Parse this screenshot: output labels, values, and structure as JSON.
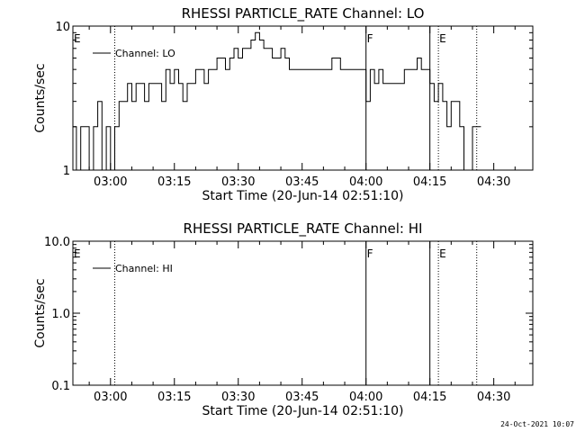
{
  "footer": {
    "date": "24-Oct-2021 10:07"
  },
  "chart_data": [
    {
      "type": "line",
      "title": "RHESSI PARTICLE_RATE Channel: LO",
      "xlabel": "Start Time (20-Jun-14 02:51:10)",
      "ylabel": "Counts/sec",
      "y_scale": "log",
      "ylim": [
        1,
        10
      ],
      "xlim_minutes_after_02:51:10": [
        0,
        108
      ],
      "x_ticks": [
        "03:00",
        "03:15",
        "03:30",
        "03:45",
        "04:00",
        "04:15",
        "04:30"
      ],
      "y_ticks": [
        "1",
        "10"
      ],
      "legend": {
        "position": "top-left",
        "entries": [
          "Channel: LO"
        ]
      },
      "annotations": [
        {
          "label": "E",
          "x": "02:51"
        },
        {
          "label": "F",
          "x": "04:00"
        },
        {
          "label": "E",
          "x": "04:17"
        }
      ],
      "series": [
        {
          "name": "Channel: LO",
          "x": [
            "02:51",
            "02:52",
            "02:53",
            "02:54",
            "02:55",
            "02:56",
            "02:57",
            "02:58",
            "02:59",
            "03:00",
            "03:01",
            "03:02",
            "03:03",
            "03:04",
            "03:05",
            "03:06",
            "03:07",
            "03:08",
            "03:09",
            "03:10",
            "03:11",
            "03:12",
            "03:13",
            "03:14",
            "03:15",
            "03:16",
            "03:17",
            "03:18",
            "03:19",
            "03:20",
            "03:21",
            "03:22",
            "03:23",
            "03:24",
            "03:25",
            "03:26",
            "03:27",
            "03:28",
            "03:29",
            "03:30",
            "03:31",
            "03:32",
            "03:33",
            "03:34",
            "03:35",
            "03:36",
            "03:37",
            "03:38",
            "03:39",
            "03:40",
            "03:41",
            "03:42",
            "03:43",
            "03:44",
            "03:45",
            "03:46",
            "03:47",
            "03:48",
            "03:49",
            "03:50",
            "03:51",
            "03:52",
            "03:53",
            "03:54",
            "03:55",
            "03:56",
            "03:57",
            "03:58",
            "03:59",
            "04:00",
            "04:01",
            "04:02",
            "04:03",
            "04:04",
            "04:05",
            "04:06",
            "04:07",
            "04:08",
            "04:09",
            "04:10",
            "04:11",
            "04:12",
            "04:13",
            "04:14",
            "04:15",
            "04:16",
            "04:17",
            "04:18",
            "04:19",
            "04:20",
            "04:21",
            "04:22",
            "04:23",
            "04:24",
            "04:25",
            "04:26"
          ],
          "values": [
            2,
            1,
            2,
            2,
            1,
            2,
            3,
            1,
            2,
            1,
            2,
            3,
            3,
            4,
            3,
            4,
            4,
            3,
            4,
            4,
            4,
            3,
            5,
            4,
            5,
            4,
            3,
            4,
            4,
            5,
            5,
            4,
            5,
            5,
            6,
            6,
            5,
            6,
            7,
            6,
            7,
            7,
            8,
            9,
            8,
            7,
            7,
            6,
            6,
            7,
            6,
            5,
            5,
            5,
            5,
            5,
            5,
            5,
            5,
            5,
            5,
            6,
            6,
            5,
            5,
            5,
            5,
            5,
            5,
            3,
            5,
            4,
            5,
            4,
            4,
            4,
            4,
            4,
            5,
            5,
            5,
            6,
            5,
            5,
            4,
            3,
            4,
            3,
            2,
            3,
            3,
            2,
            1,
            1,
            2,
            2
          ]
        }
      ]
    },
    {
      "type": "line",
      "title": "RHESSI PARTICLE_RATE Channel: HI",
      "xlabel": "Start Time (20-Jun-14 02:51:10)",
      "ylabel": "Counts/sec",
      "y_scale": "log",
      "ylim": [
        0.1,
        10
      ],
      "xlim_minutes_after_02:51:10": [
        0,
        108
      ],
      "x_ticks": [
        "03:00",
        "03:15",
        "03:30",
        "03:45",
        "04:00",
        "04:15",
        "04:30"
      ],
      "y_ticks": [
        "0.1",
        "1.0",
        "10.0"
      ],
      "legend": {
        "position": "top-left",
        "entries": [
          "Channel: HI"
        ]
      },
      "annotations": [
        {
          "label": "E",
          "x": "02:51"
        },
        {
          "label": "F",
          "x": "04:00"
        },
        {
          "label": "E",
          "x": "04:17"
        }
      ],
      "series": [
        {
          "name": "Channel: HI",
          "x": [],
          "values": []
        }
      ]
    }
  ]
}
